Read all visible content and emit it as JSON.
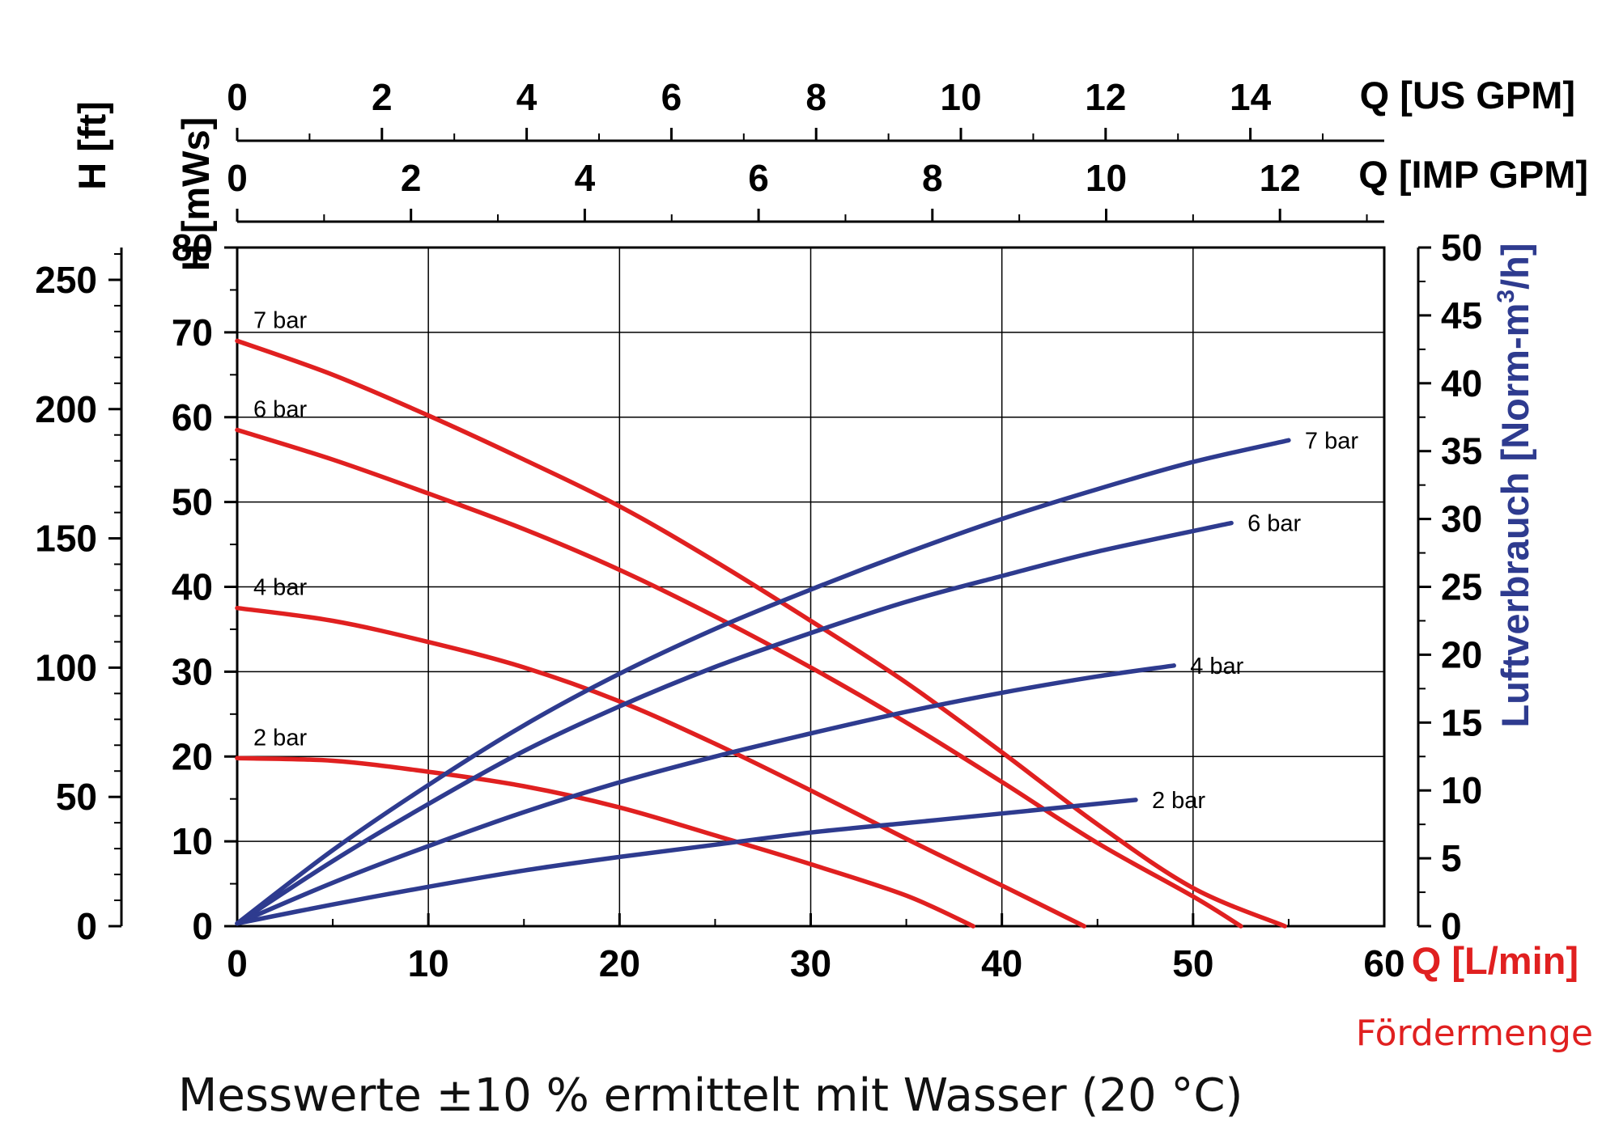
{
  "chart_data": {
    "type": "line",
    "footnote": "Messwerte ±10 % ermittelt mit Wasser (20 °C)",
    "axes": {
      "x_bottom": {
        "label": "Q [L/min]",
        "sublabel": "Fördermenge",
        "range": [
          0,
          60
        ],
        "ticks": [
          0,
          10,
          20,
          30,
          40,
          50,
          60
        ],
        "color": "#e02020"
      },
      "x_top_us": {
        "label": "Q [US GPM]",
        "range": [
          0,
          15.85
        ],
        "ticks": [
          0,
          2,
          4,
          6,
          8,
          10,
          12,
          14
        ]
      },
      "x_top_imp": {
        "label": "Q [IMP GPM]",
        "range": [
          0,
          13.2
        ],
        "ticks": [
          0,
          2,
          4,
          6,
          8,
          10,
          12
        ]
      },
      "y_left_mws": {
        "label": "H [mWs]",
        "range": [
          0,
          80
        ],
        "ticks": [
          0,
          10,
          20,
          30,
          40,
          50,
          60,
          70,
          80
        ]
      },
      "y_left_ft": {
        "label": "H [ft]",
        "range": [
          0,
          262.5
        ],
        "ticks": [
          0,
          50,
          100,
          150,
          200,
          250
        ]
      },
      "y_right": {
        "label": "Luftverbrauch [Norm-m³/h]",
        "label_main": "Luftverbrauch [Norm-m",
        "label_sup": "3",
        "label_end": "/h]",
        "range": [
          0,
          50
        ],
        "ticks": [
          0,
          5,
          10,
          15,
          20,
          25,
          30,
          35,
          40,
          45,
          50
        ],
        "color": "#2e3b8f"
      }
    },
    "grid": true,
    "series_head": [
      {
        "name": "7 bar",
        "axis": "y_left_mws",
        "color": "#e02020",
        "points": [
          [
            0,
            69
          ],
          [
            5,
            65
          ],
          [
            10,
            60.2
          ],
          [
            15,
            55
          ],
          [
            20,
            49.5
          ],
          [
            25,
            43
          ],
          [
            30,
            36
          ],
          [
            35,
            28.7
          ],
          [
            40,
            20.5
          ],
          [
            45,
            12
          ],
          [
            50,
            4.5
          ],
          [
            54.8,
            0
          ]
        ]
      },
      {
        "name": "6 bar",
        "axis": "y_left_mws",
        "color": "#e02020",
        "points": [
          [
            0,
            58.5
          ],
          [
            5,
            55
          ],
          [
            10,
            51
          ],
          [
            15,
            46.8
          ],
          [
            20,
            42
          ],
          [
            25,
            36.5
          ],
          [
            30,
            30.5
          ],
          [
            35,
            24
          ],
          [
            40,
            17
          ],
          [
            45,
            9.8
          ],
          [
            50,
            3.5
          ],
          [
            52.5,
            0
          ]
        ]
      },
      {
        "name": "4 bar",
        "axis": "y_left_mws",
        "color": "#e02020",
        "points": [
          [
            0,
            37.5
          ],
          [
            5,
            36
          ],
          [
            10,
            33.5
          ],
          [
            15,
            30.5
          ],
          [
            20,
            26.5
          ],
          [
            25,
            21.5
          ],
          [
            30,
            16
          ],
          [
            35,
            10.3
          ],
          [
            40,
            4.8
          ],
          [
            44.3,
            0
          ]
        ]
      },
      {
        "name": "2 bar",
        "axis": "y_left_mws",
        "color": "#e02020",
        "points": [
          [
            0,
            19.8
          ],
          [
            5,
            19.5
          ],
          [
            10,
            18.2
          ],
          [
            15,
            16.5
          ],
          [
            20,
            14
          ],
          [
            25,
            10.7
          ],
          [
            30,
            7.3
          ],
          [
            35,
            3.6
          ],
          [
            38.5,
            0
          ]
        ]
      }
    ],
    "series_air": [
      {
        "name": "7 bar",
        "axis": "y_right",
        "color": "#2e3b8f",
        "points": [
          [
            0,
            0.2
          ],
          [
            5,
            5.6
          ],
          [
            10,
            10.4
          ],
          [
            15,
            14.8
          ],
          [
            20,
            18.6
          ],
          [
            25,
            21.9
          ],
          [
            30,
            24.8
          ],
          [
            35,
            27.5
          ],
          [
            40,
            30
          ],
          [
            45,
            32.2
          ],
          [
            50,
            34.2
          ],
          [
            55,
            35.8
          ]
        ]
      },
      {
        "name": "6 bar",
        "axis": "y_right",
        "color": "#2e3b8f",
        "points": [
          [
            0,
            0.2
          ],
          [
            5,
            4.8
          ],
          [
            10,
            9
          ],
          [
            15,
            12.9
          ],
          [
            20,
            16.2
          ],
          [
            25,
            19.1
          ],
          [
            30,
            21.6
          ],
          [
            35,
            23.9
          ],
          [
            40,
            25.8
          ],
          [
            45,
            27.6
          ],
          [
            52,
            29.7
          ]
        ]
      },
      {
        "name": "4 bar",
        "axis": "y_right",
        "color": "#2e3b8f",
        "points": [
          [
            0,
            0.2
          ],
          [
            5,
            3.2
          ],
          [
            10,
            5.9
          ],
          [
            15,
            8.4
          ],
          [
            20,
            10.6
          ],
          [
            25,
            12.5
          ],
          [
            30,
            14.2
          ],
          [
            35,
            15.8
          ],
          [
            40,
            17.2
          ],
          [
            45,
            18.4
          ],
          [
            49,
            19.2
          ]
        ]
      },
      {
        "name": "2 bar",
        "axis": "y_right",
        "color": "#2e3b8f",
        "points": [
          [
            0,
            0.2
          ],
          [
            5,
            1.6
          ],
          [
            10,
            2.9
          ],
          [
            15,
            4.1
          ],
          [
            20,
            5.1
          ],
          [
            25,
            6
          ],
          [
            30,
            6.9
          ],
          [
            35,
            7.6
          ],
          [
            40,
            8.3
          ],
          [
            47,
            9.3
          ]
        ]
      }
    ]
  }
}
